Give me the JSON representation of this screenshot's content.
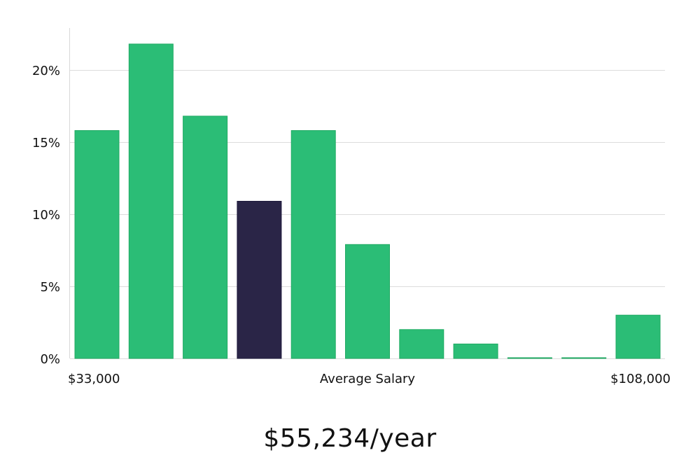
{
  "chart_data": {
    "type": "bar",
    "title": "",
    "xlabel": "Average Salary",
    "ylabel": "",
    "x_range_labels": [
      "$33,000",
      "$108,000"
    ],
    "y_ticks": [
      0,
      5,
      10,
      15,
      20
    ],
    "y_tick_labels": [
      "0%",
      "5%",
      "10%",
      "15%",
      "20%"
    ],
    "ylim": [
      0,
      23
    ],
    "grid": true,
    "values": [
      15.8,
      21.8,
      16.8,
      10.9,
      15.8,
      7.9,
      2.0,
      1.0,
      0.05,
      0.05,
      3.0
    ],
    "highlight_index": 3,
    "colors": {
      "bar": "#2bbd76",
      "bar_stroke": "#20aa63",
      "highlight": "#2a2547",
      "highlight_stroke": "#1e1a3c",
      "text": "#111111",
      "grid": "#dcdcdc"
    }
  },
  "summary": {
    "salary_text": "$55,234/year"
  }
}
